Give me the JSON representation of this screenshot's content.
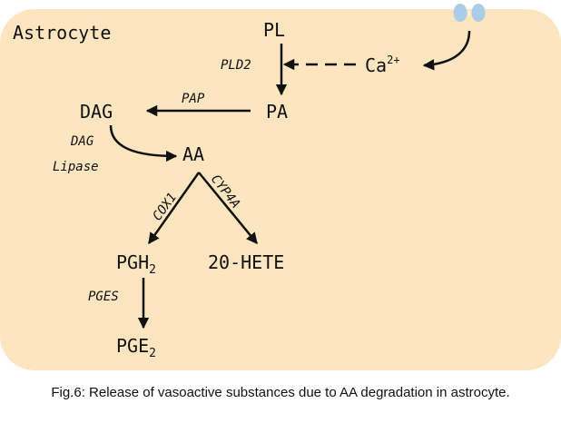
{
  "container_label": "Astrocyte",
  "colors": {
    "cell_fill": "#fce5bf",
    "channel": "#a9cde6",
    "ink": "#111111"
  },
  "nodes": {
    "pl": "PL",
    "ca": {
      "base": "Ca",
      "sup": "2+"
    },
    "pa": "PA",
    "dag": "DAG",
    "aa": "AA",
    "pgh2": {
      "base": "PGH",
      "sub": "2"
    },
    "hete": "20-HETE",
    "pge2": {
      "base": "PGE",
      "sub": "2"
    }
  },
  "enzymes": {
    "pld2": "PLD2",
    "pap": "PAP",
    "dag_lipase_line1": "DAG",
    "dag_lipase_line2": "Lipase",
    "cox1": "COX1",
    "cyp4a": "CYP4A",
    "pges": "PGES"
  },
  "caption": "Fig.6: Release of vasoactive substances due to AA degradation in astrocyte."
}
